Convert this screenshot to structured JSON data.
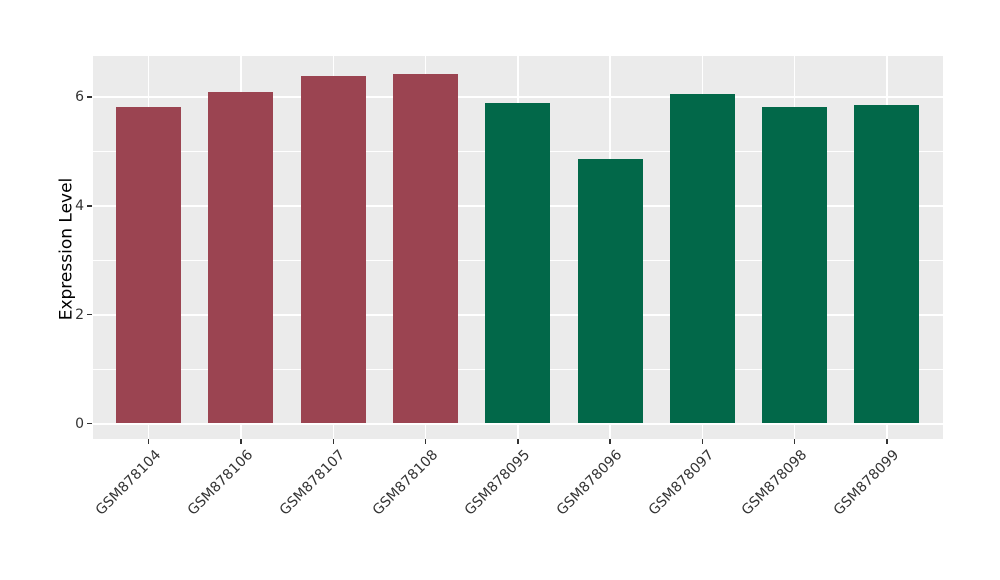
{
  "chart_data": {
    "type": "bar",
    "title": "",
    "xlabel": "",
    "ylabel": "Expression Level",
    "categories": [
      "GSM878104",
      "GSM878106",
      "GSM878107",
      "GSM878108",
      "GSM878095",
      "GSM878096",
      "GSM878097",
      "GSM878098",
      "GSM878099"
    ],
    "values": [
      5.82,
      6.09,
      6.39,
      6.43,
      5.9,
      4.86,
      6.05,
      5.81,
      5.85
    ],
    "group_index": [
      0,
      0,
      0,
      0,
      1,
      1,
      1,
      1,
      1
    ],
    "group_colors": [
      "#9B4451",
      "#026849"
    ],
    "y_ticks": [
      0,
      2,
      4,
      6
    ],
    "y_minor_ticks": [
      1,
      3,
      5
    ],
    "ylim": [
      -0.32,
      6.76
    ],
    "grid": true,
    "legend": false,
    "x_label_rotation_deg": 45,
    "style": {
      "panel_bg": "#EBEBEB",
      "figure_bg": "#FFFFFF",
      "grid_color": "#FFFFFF",
      "tick_text_color": "#333333",
      "axis_title_color": "#000000"
    }
  }
}
